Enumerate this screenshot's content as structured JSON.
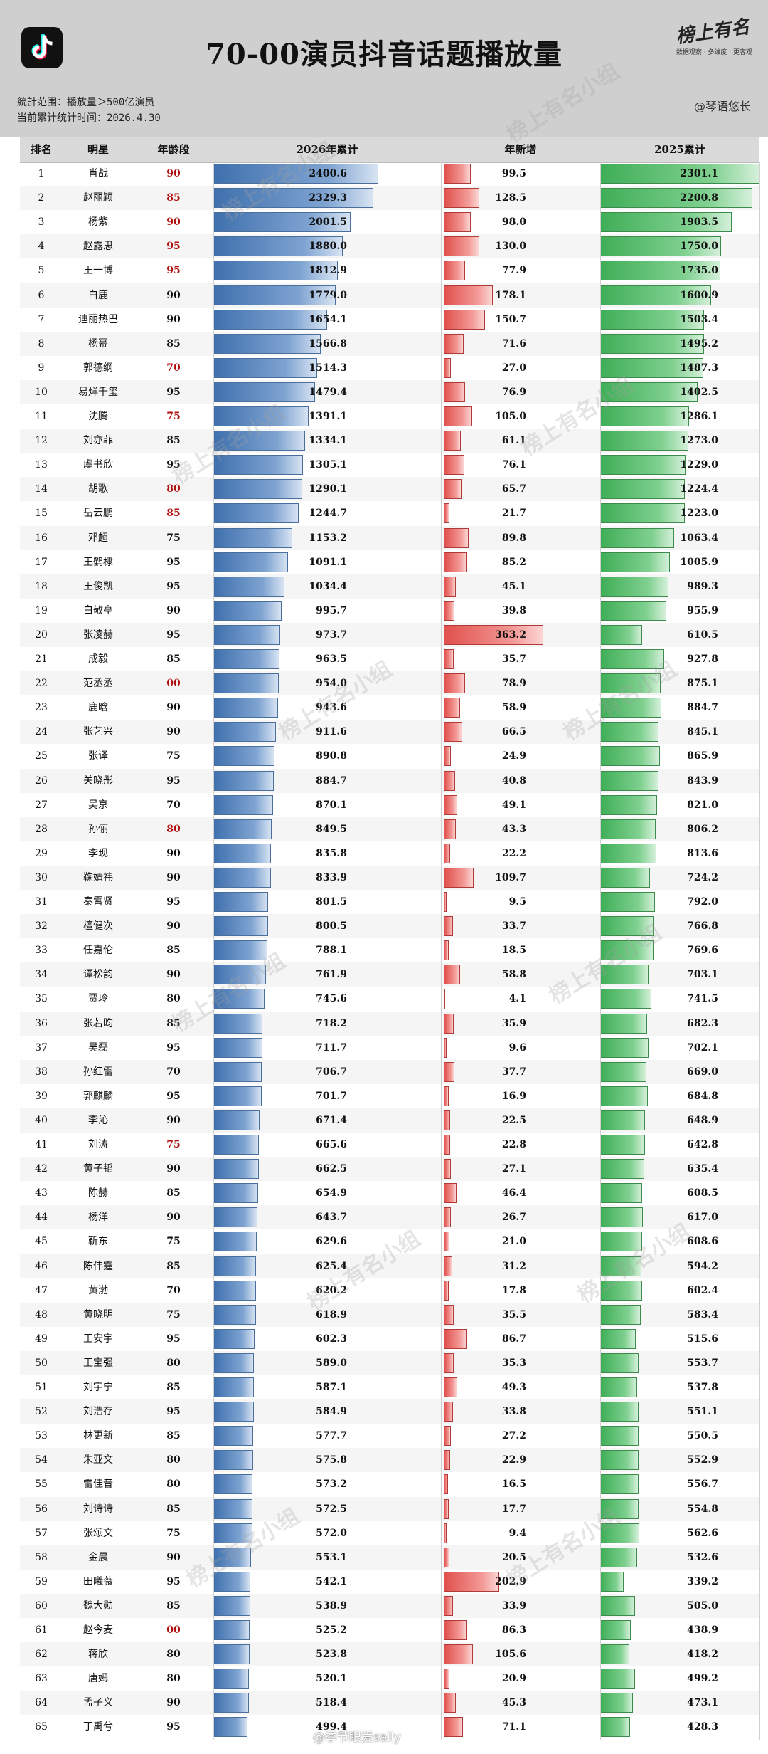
{
  "header": {
    "title": "70-00演员抖音话题播放量",
    "scope_line": "統計范围：播放量＞500亿演员",
    "date_line": "当前累计统计时间：2026.4.30",
    "brand": "榜上有名",
    "brand_tagline": "数据观察 · 多维度 · 更客观",
    "author": "@琴语悠长",
    "logo_icon": "tiktok-icon"
  },
  "columns": {
    "rank": "排名",
    "name": "明星",
    "age": "年龄段",
    "total_2026": "2026年累计",
    "new": "年新增",
    "total_2025": "2025累计"
  },
  "watermark": "榜上有名小组",
  "footer_watermark": "@季节眼爱sally",
  "colors": {
    "accent_age": "#b01010",
    "bar_2026": "#3f70ad",
    "bar_new": "#e0504c",
    "bar_2025": "#3fae57",
    "header_bg": "#cfcfcf"
  },
  "chart_data": {
    "type": "table",
    "series": [
      {
        "name": "2026年累计",
        "axis_max": 2400.6
      },
      {
        "name": "年新增",
        "axis_max": 363.2
      },
      {
        "name": "2025累计",
        "axis_max": 2301.1
      }
    ],
    "rows": [
      {
        "rank": "1",
        "name": "肖战",
        "age": "90",
        "total_2026": 2400.6,
        "new": 99.5,
        "total_2025": 2301.1
      },
      {
        "rank": "2",
        "name": "赵丽颖",
        "age": "85",
        "total_2026": 2329.3,
        "new": 128.5,
        "total_2025": 2200.8
      },
      {
        "rank": "3",
        "name": "杨紫",
        "age": "90",
        "total_2026": 2001.5,
        "new": 98.0,
        "total_2025": 1903.5
      },
      {
        "rank": "4",
        "name": "赵露思",
        "age": "95",
        "total_2026": 1880.0,
        "new": 130.0,
        "total_2025": 1750.0
      },
      {
        "rank": "5",
        "name": "王一博",
        "age": "95",
        "total_2026": 1812.9,
        "new": 77.9,
        "total_2025": 1735.0
      },
      {
        "rank": "6",
        "name": "白鹿",
        "age": "90",
        "total_2026": 1779.0,
        "new": 178.1,
        "total_2025": 1600.9
      },
      {
        "rank": "7",
        "name": "迪丽热巴",
        "age": "90",
        "total_2026": 1654.1,
        "new": 150.7,
        "total_2025": 1503.4
      },
      {
        "rank": "8",
        "name": "杨幂",
        "age": "85",
        "total_2026": 1566.8,
        "new": 71.6,
        "total_2025": 1495.2
      },
      {
        "rank": "9",
        "name": "郭德纲",
        "age": "70",
        "total_2026": 1514.3,
        "new": 27.0,
        "total_2025": 1487.3
      },
      {
        "rank": "10",
        "name": "易烊千玺",
        "age": "95",
        "total_2026": 1479.4,
        "new": 76.9,
        "total_2025": 1402.5
      },
      {
        "rank": "11",
        "name": "沈腾",
        "age": "75",
        "total_2026": 1391.1,
        "new": 105.0,
        "total_2025": 1286.1
      },
      {
        "rank": "12",
        "name": "刘亦菲",
        "age": "85",
        "total_2026": 1334.1,
        "new": 61.1,
        "total_2025": 1273.0
      },
      {
        "rank": "13",
        "name": "虞书欣",
        "age": "95",
        "total_2026": 1305.1,
        "new": 76.1,
        "total_2025": 1229.0
      },
      {
        "rank": "14",
        "name": "胡歌",
        "age": "80",
        "total_2026": 1290.1,
        "new": 65.7,
        "total_2025": 1224.4
      },
      {
        "rank": "15",
        "name": "岳云鹏",
        "age": "85",
        "total_2026": 1244.7,
        "new": 21.7,
        "total_2025": 1223.0
      },
      {
        "rank": "16",
        "name": "邓超",
        "age": "75",
        "total_2026": 1153.2,
        "new": 89.8,
        "total_2025": 1063.4
      },
      {
        "rank": "17",
        "name": "王鹤棣",
        "age": "95",
        "total_2026": 1091.1,
        "new": 85.2,
        "total_2025": 1005.9
      },
      {
        "rank": "18",
        "name": "王俊凯",
        "age": "95",
        "total_2026": 1034.4,
        "new": 45.1,
        "total_2025": 989.3
      },
      {
        "rank": "19",
        "name": "白敬亭",
        "age": "90",
        "total_2026": 995.7,
        "new": 39.8,
        "total_2025": 955.9
      },
      {
        "rank": "20",
        "name": "张凌赫",
        "age": "95",
        "total_2026": 973.7,
        "new": 363.2,
        "total_2025": 610.5
      },
      {
        "rank": "21",
        "name": "成毅",
        "age": "85",
        "total_2026": 963.5,
        "new": 35.7,
        "total_2025": 927.8
      },
      {
        "rank": "22",
        "name": "范丞丞",
        "age": "00",
        "total_2026": 954.0,
        "new": 78.9,
        "total_2025": 875.1
      },
      {
        "rank": "23",
        "name": "鹿晗",
        "age": "90",
        "total_2026": 943.6,
        "new": 58.9,
        "total_2025": 884.7
      },
      {
        "rank": "24",
        "name": "张艺兴",
        "age": "90",
        "total_2026": 911.6,
        "new": 66.5,
        "total_2025": 845.1
      },
      {
        "rank": "25",
        "name": "张译",
        "age": "75",
        "total_2026": 890.8,
        "new": 24.9,
        "total_2025": 865.9
      },
      {
        "rank": "26",
        "name": "关晓彤",
        "age": "95",
        "total_2026": 884.7,
        "new": 40.8,
        "total_2025": 843.9
      },
      {
        "rank": "27",
        "name": "吴京",
        "age": "70",
        "total_2026": 870.1,
        "new": 49.1,
        "total_2025": 821.0
      },
      {
        "rank": "28",
        "name": "孙俪",
        "age": "80",
        "total_2026": 849.5,
        "new": 43.3,
        "total_2025": 806.2
      },
      {
        "rank": "29",
        "name": "李现",
        "age": "90",
        "total_2026": 835.8,
        "new": 22.2,
        "total_2025": 813.6
      },
      {
        "rank": "30",
        "name": "鞠婧祎",
        "age": "90",
        "total_2026": 833.9,
        "new": 109.7,
        "total_2025": 724.2
      },
      {
        "rank": "31",
        "name": "秦霄贤",
        "age": "95",
        "total_2026": 801.5,
        "new": 9.5,
        "total_2025": 792.0
      },
      {
        "rank": "32",
        "name": "檀健次",
        "age": "90",
        "total_2026": 800.5,
        "new": 33.7,
        "total_2025": 766.8
      },
      {
        "rank": "33",
        "name": "任嘉伦",
        "age": "85",
        "total_2026": 788.1,
        "new": 18.5,
        "total_2025": 769.6
      },
      {
        "rank": "34",
        "name": "谭松韵",
        "age": "90",
        "total_2026": 761.9,
        "new": 58.8,
        "total_2025": 703.1
      },
      {
        "rank": "35",
        "name": "贾玲",
        "age": "80",
        "total_2026": 745.6,
        "new": 4.1,
        "total_2025": 741.5
      },
      {
        "rank": "36",
        "name": "张若昀",
        "age": "85",
        "total_2026": 718.2,
        "new": 35.9,
        "total_2025": 682.3
      },
      {
        "rank": "37",
        "name": "吴磊",
        "age": "95",
        "total_2026": 711.7,
        "new": 9.6,
        "total_2025": 702.1
      },
      {
        "rank": "38",
        "name": "孙红雷",
        "age": "70",
        "total_2026": 706.7,
        "new": 37.7,
        "total_2025": 669.0
      },
      {
        "rank": "39",
        "name": "郭麒麟",
        "age": "95",
        "total_2026": 701.7,
        "new": 16.9,
        "total_2025": 684.8
      },
      {
        "rank": "40",
        "name": "李沁",
        "age": "90",
        "total_2026": 671.4,
        "new": 22.5,
        "total_2025": 648.9
      },
      {
        "rank": "41",
        "name": "刘涛",
        "age": "75",
        "total_2026": 665.6,
        "new": 22.8,
        "total_2025": 642.8
      },
      {
        "rank": "42",
        "name": "黄子韬",
        "age": "90",
        "total_2026": 662.5,
        "new": 27.1,
        "total_2025": 635.4
      },
      {
        "rank": "43",
        "name": "陈赫",
        "age": "85",
        "total_2026": 654.9,
        "new": 46.4,
        "total_2025": 608.5
      },
      {
        "rank": "44",
        "name": "杨洋",
        "age": "90",
        "total_2026": 643.7,
        "new": 26.7,
        "total_2025": 617.0
      },
      {
        "rank": "45",
        "name": "靳东",
        "age": "75",
        "total_2026": 629.6,
        "new": 21.0,
        "total_2025": 608.6
      },
      {
        "rank": "46",
        "name": "陈伟霆",
        "age": "85",
        "total_2026": 625.4,
        "new": 31.2,
        "total_2025": 594.2
      },
      {
        "rank": "47",
        "name": "黄渤",
        "age": "70",
        "total_2026": 620.2,
        "new": 17.8,
        "total_2025": 602.4
      },
      {
        "rank": "48",
        "name": "黄晓明",
        "age": "75",
        "total_2026": 618.9,
        "new": 35.5,
        "total_2025": 583.4
      },
      {
        "rank": "49",
        "name": "王安宇",
        "age": "95",
        "total_2026": 602.3,
        "new": 86.7,
        "total_2025": 515.6
      },
      {
        "rank": "50",
        "name": "王宝强",
        "age": "80",
        "total_2026": 589.0,
        "new": 35.3,
        "total_2025": 553.7
      },
      {
        "rank": "51",
        "name": "刘宇宁",
        "age": "85",
        "total_2026": 587.1,
        "new": 49.3,
        "total_2025": 537.8
      },
      {
        "rank": "52",
        "name": "刘浩存",
        "age": "95",
        "total_2026": 584.9,
        "new": 33.8,
        "total_2025": 551.1
      },
      {
        "rank": "53",
        "name": "林更新",
        "age": "85",
        "total_2026": 577.7,
        "new": 27.2,
        "total_2025": 550.5
      },
      {
        "rank": "54",
        "name": "朱亚文",
        "age": "80",
        "total_2026": 575.8,
        "new": 22.9,
        "total_2025": 552.9
      },
      {
        "rank": "55",
        "name": "雷佳音",
        "age": "80",
        "total_2026": 573.2,
        "new": 16.5,
        "total_2025": 556.7
      },
      {
        "rank": "56",
        "name": "刘诗诗",
        "age": "85",
        "total_2026": 572.5,
        "new": 17.7,
        "total_2025": 554.8
      },
      {
        "rank": "57",
        "name": "张颂文",
        "age": "75",
        "total_2026": 572.0,
        "new": 9.4,
        "total_2025": 562.6
      },
      {
        "rank": "58",
        "name": "金晨",
        "age": "90",
        "total_2026": 553.1,
        "new": 20.5,
        "total_2025": 532.6
      },
      {
        "rank": "59",
        "name": "田曦薇",
        "age": "95",
        "total_2026": 542.1,
        "new": 202.9,
        "total_2025": 339.2
      },
      {
        "rank": "60",
        "name": "魏大勋",
        "age": "85",
        "total_2026": 538.9,
        "new": 33.9,
        "total_2025": 505.0
      },
      {
        "rank": "61",
        "name": "赵今麦",
        "age": "00",
        "total_2026": 525.2,
        "new": 86.3,
        "total_2025": 438.9
      },
      {
        "rank": "62",
        "name": "蒋欣",
        "age": "80",
        "total_2026": 523.8,
        "new": 105.6,
        "total_2025": 418.2
      },
      {
        "rank": "63",
        "name": "唐嫣",
        "age": "80",
        "total_2026": 520.1,
        "new": 20.9,
        "total_2025": 499.2
      },
      {
        "rank": "64",
        "name": "孟子义",
        "age": "90",
        "total_2026": 518.4,
        "new": 45.3,
        "total_2025": 473.1
      },
      {
        "rank": "65",
        "name": "丁禹兮",
        "age": "95",
        "total_2026": 499.4,
        "new": 71.1,
        "total_2025": 428.3
      }
    ],
    "highlighted_age_ranks": [
      "1",
      "2",
      "3",
      "4",
      "5",
      "9",
      "11",
      "14",
      "15",
      "22",
      "28",
      "41",
      "61"
    ]
  }
}
